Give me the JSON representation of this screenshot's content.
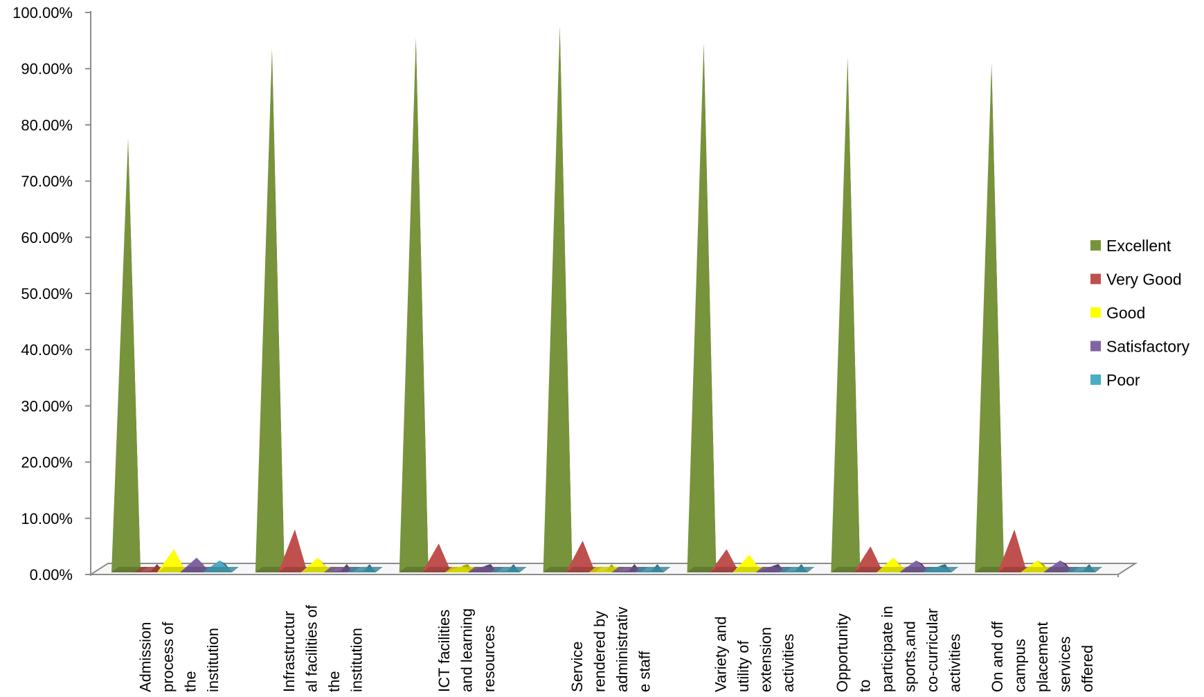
{
  "chart_data": {
    "type": "bar",
    "style": "3d-pyramid",
    "categories": [
      [
        "Admission",
        "process of",
        "the",
        "institution"
      ],
      [
        "Infrastructur",
        "al facilities of",
        "the",
        "institution"
      ],
      [
        "ICT  facilities",
        "and learning",
        "resources"
      ],
      [
        "Service",
        "rendered by",
        "administrativ",
        "e staff"
      ],
      [
        "Variety and",
        "utility of",
        "extension",
        "activities"
      ],
      [
        "Opportunity",
        "to",
        "participate in",
        "sports,and",
        "co-curricular",
        "activities"
      ],
      [
        "On and off",
        "campus",
        "placement",
        "services",
        "offered"
      ]
    ],
    "series": [
      {
        "name": "Excellent",
        "color": "#77933C",
        "values": [
          77.5,
          93.5,
          95.5,
          97.5,
          94.5,
          92.0,
          91.0
        ]
      },
      {
        "name": "Very Good",
        "color": "#C0504D",
        "values": [
          0.0,
          8.0,
          5.5,
          6.0,
          4.5,
          5.0,
          8.0
        ]
      },
      {
        "name": "Good",
        "color": "#FFFF00",
        "values": [
          4.5,
          3.0,
          1.5,
          0.5,
          3.5,
          3.0,
          2.5
        ]
      },
      {
        "name": "Satisfactory",
        "color": "#8064A2",
        "values": [
          3.0,
          0.5,
          1.5,
          0.5,
          1.5,
          2.5,
          2.5
        ]
      },
      {
        "name": "Poor",
        "color": "#4BACC6",
        "values": [
          2.5,
          0.5,
          0.5,
          0.5,
          0.5,
          1.5,
          0.5
        ]
      }
    ],
    "ylim": [
      0,
      100
    ],
    "yticks": [
      "0.00%",
      "10.00%",
      "20.00%",
      "30.00%",
      "40.00%",
      "50.00%",
      "60.00%",
      "70.00%",
      "80.00%",
      "90.00%",
      "100.00%"
    ],
    "legend_position": "right",
    "grid": false,
    "title": "",
    "xlabel": "",
    "ylabel": ""
  }
}
